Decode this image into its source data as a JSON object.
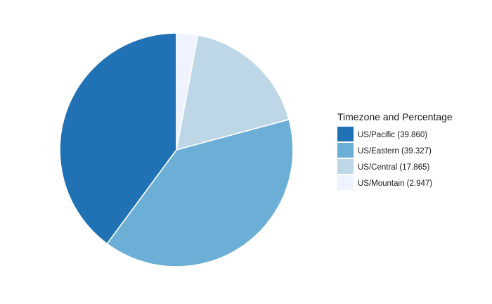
{
  "chart_data": {
    "type": "pie",
    "legend_title": "Timezone and Percentage",
    "legend_position": "right",
    "start_angle": "12 o'clock",
    "direction": "clockwise",
    "slices": [
      {
        "label": "US/Pacific (39.860)",
        "category": "US/Pacific",
        "value": 39.86,
        "color": "#2171b5"
      },
      {
        "label": "US/Eastern (39.327)",
        "category": "US/Eastern",
        "value": 39.327,
        "color": "#6baed6"
      },
      {
        "label": "US/Central (17.865)",
        "category": "US/Central",
        "value": 17.865,
        "color": "#bdd7e7"
      },
      {
        "label": "US/Mountain (2.947)",
        "category": "US/Mountain",
        "value": 2.947,
        "color": "#eff3ff"
      }
    ],
    "drawing_order_clockwise_from_top": [
      "US/Mountain",
      "US/Central",
      "US/Eastern",
      "US/Pacific"
    ]
  }
}
